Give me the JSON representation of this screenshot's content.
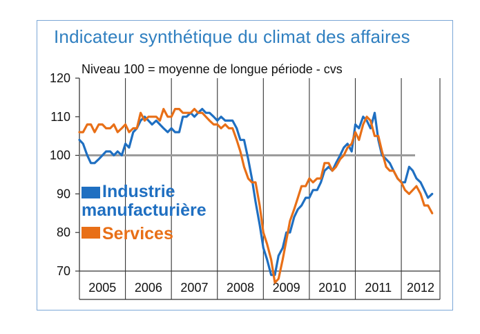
{
  "chart_data": {
    "type": "line",
    "title": "Indicateur synthétique du climat des affaires",
    "subtitle": "Niveau 100 = moyenne de longue période - cvs",
    "xlabel": "",
    "ylabel": "",
    "ylim": [
      70,
      120
    ],
    "yticks": [
      70,
      80,
      90,
      100,
      110,
      120
    ],
    "xlim": [
      2005.0,
      2012.84
    ],
    "years": [
      "2005",
      "2006",
      "2007",
      "2008",
      "2009",
      "2010",
      "2011",
      "2012"
    ],
    "reference_line": 100,
    "grid": false,
    "legend_position": "left-middle",
    "series": [
      {
        "name": "Industrie manufacturière",
        "color": "#1f6fc1",
        "values": [
          [
            2005.0,
            104
          ],
          [
            2005.08,
            103
          ],
          [
            2005.17,
            100
          ],
          [
            2005.25,
            98
          ],
          [
            2005.33,
            98
          ],
          [
            2005.42,
            99
          ],
          [
            2005.5,
            100
          ],
          [
            2005.58,
            101
          ],
          [
            2005.67,
            101
          ],
          [
            2005.75,
            100
          ],
          [
            2005.83,
            101
          ],
          [
            2005.92,
            100
          ],
          [
            2006.0,
            103
          ],
          [
            2006.08,
            102
          ],
          [
            2006.17,
            106
          ],
          [
            2006.25,
            107
          ],
          [
            2006.33,
            109
          ],
          [
            2006.42,
            110
          ],
          [
            2006.5,
            109
          ],
          [
            2006.58,
            108
          ],
          [
            2006.67,
            109
          ],
          [
            2006.75,
            108
          ],
          [
            2006.83,
            107
          ],
          [
            2006.92,
            106
          ],
          [
            2007.0,
            107
          ],
          [
            2007.08,
            106
          ],
          [
            2007.17,
            106
          ],
          [
            2007.25,
            110
          ],
          [
            2007.33,
            110
          ],
          [
            2007.42,
            111
          ],
          [
            2007.5,
            110
          ],
          [
            2007.58,
            111
          ],
          [
            2007.67,
            112
          ],
          [
            2007.75,
            111
          ],
          [
            2007.83,
            111
          ],
          [
            2007.92,
            110
          ],
          [
            2008.0,
            109
          ],
          [
            2008.08,
            110
          ],
          [
            2008.17,
            109
          ],
          [
            2008.25,
            109
          ],
          [
            2008.33,
            109
          ],
          [
            2008.42,
            107
          ],
          [
            2008.5,
            104
          ],
          [
            2008.58,
            104
          ],
          [
            2008.67,
            99
          ],
          [
            2008.75,
            94
          ],
          [
            2008.83,
            88
          ],
          [
            2008.92,
            82
          ],
          [
            2009.0,
            76
          ],
          [
            2009.08,
            73
          ],
          [
            2009.17,
            69
          ],
          [
            2009.25,
            69
          ],
          [
            2009.33,
            74
          ],
          [
            2009.42,
            76
          ],
          [
            2009.5,
            80
          ],
          [
            2009.58,
            80
          ],
          [
            2009.67,
            84
          ],
          [
            2009.75,
            86
          ],
          [
            2009.83,
            87
          ],
          [
            2009.92,
            89
          ],
          [
            2010.0,
            89
          ],
          [
            2010.08,
            91
          ],
          [
            2010.17,
            91
          ],
          [
            2010.25,
            93
          ],
          [
            2010.33,
            96
          ],
          [
            2010.42,
            97
          ],
          [
            2010.5,
            96
          ],
          [
            2010.58,
            98
          ],
          [
            2010.67,
            100
          ],
          [
            2010.75,
            102
          ],
          [
            2010.83,
            103
          ],
          [
            2010.92,
            101
          ],
          [
            2011.0,
            108
          ],
          [
            2011.08,
            107
          ],
          [
            2011.17,
            110
          ],
          [
            2011.25,
            109
          ],
          [
            2011.33,
            107
          ],
          [
            2011.42,
            111
          ],
          [
            2011.5,
            104
          ],
          [
            2011.58,
            100
          ],
          [
            2011.67,
            99
          ],
          [
            2011.75,
            98
          ],
          [
            2011.83,
            96
          ],
          [
            2011.92,
            94
          ],
          [
            2012.0,
            93
          ],
          [
            2012.08,
            93
          ],
          [
            2012.17,
            97
          ],
          [
            2012.25,
            96
          ],
          [
            2012.33,
            94
          ],
          [
            2012.42,
            93
          ],
          [
            2012.5,
            91
          ],
          [
            2012.58,
            89
          ],
          [
            2012.67,
            90
          ]
        ]
      },
      {
        "name": "Services",
        "color": "#e86f17",
        "values": [
          [
            2005.0,
            106
          ],
          [
            2005.08,
            106
          ],
          [
            2005.17,
            108
          ],
          [
            2005.25,
            108
          ],
          [
            2005.33,
            106
          ],
          [
            2005.42,
            108
          ],
          [
            2005.5,
            108
          ],
          [
            2005.58,
            107
          ],
          [
            2005.67,
            107
          ],
          [
            2005.75,
            108
          ],
          [
            2005.83,
            106
          ],
          [
            2005.92,
            107
          ],
          [
            2006.0,
            108
          ],
          [
            2006.08,
            106
          ],
          [
            2006.17,
            107
          ],
          [
            2006.25,
            107
          ],
          [
            2006.33,
            111
          ],
          [
            2006.42,
            109
          ],
          [
            2006.5,
            110
          ],
          [
            2006.58,
            110
          ],
          [
            2006.67,
            110
          ],
          [
            2006.75,
            109
          ],
          [
            2006.83,
            112
          ],
          [
            2006.92,
            110
          ],
          [
            2007.0,
            110
          ],
          [
            2007.08,
            112
          ],
          [
            2007.17,
            112
          ],
          [
            2007.25,
            111
          ],
          [
            2007.33,
            111
          ],
          [
            2007.42,
            111
          ],
          [
            2007.5,
            112
          ],
          [
            2007.58,
            111
          ],
          [
            2007.67,
            111
          ],
          [
            2007.75,
            110
          ],
          [
            2007.83,
            109
          ],
          [
            2007.92,
            108
          ],
          [
            2008.0,
            108
          ],
          [
            2008.08,
            107
          ],
          [
            2008.17,
            108
          ],
          [
            2008.25,
            107
          ],
          [
            2008.33,
            107
          ],
          [
            2008.42,
            104
          ],
          [
            2008.5,
            101
          ],
          [
            2008.58,
            97
          ],
          [
            2008.67,
            94
          ],
          [
            2008.75,
            93
          ],
          [
            2008.83,
            93
          ],
          [
            2008.92,
            87
          ],
          [
            2009.0,
            80
          ],
          [
            2009.08,
            77
          ],
          [
            2009.17,
            73
          ],
          [
            2009.25,
            67
          ],
          [
            2009.33,
            68
          ],
          [
            2009.42,
            73
          ],
          [
            2009.5,
            78
          ],
          [
            2009.58,
            83
          ],
          [
            2009.67,
            86
          ],
          [
            2009.75,
            89
          ],
          [
            2009.83,
            92
          ],
          [
            2009.92,
            92
          ],
          [
            2010.0,
            94
          ],
          [
            2010.08,
            93
          ],
          [
            2010.17,
            94
          ],
          [
            2010.25,
            94
          ],
          [
            2010.33,
            98
          ],
          [
            2010.42,
            98
          ],
          [
            2010.5,
            96
          ],
          [
            2010.58,
            97
          ],
          [
            2010.67,
            99
          ],
          [
            2010.75,
            100
          ],
          [
            2010.83,
            102
          ],
          [
            2010.92,
            103
          ],
          [
            2011.0,
            106
          ],
          [
            2011.08,
            104
          ],
          [
            2011.17,
            108
          ],
          [
            2011.25,
            110
          ],
          [
            2011.33,
            109
          ],
          [
            2011.42,
            105
          ],
          [
            2011.5,
            105
          ],
          [
            2011.58,
            101
          ],
          [
            2011.67,
            97
          ],
          [
            2011.75,
            96
          ],
          [
            2011.83,
            96
          ],
          [
            2011.92,
            94
          ],
          [
            2012.0,
            93
          ],
          [
            2012.08,
            91
          ],
          [
            2012.17,
            90
          ],
          [
            2012.25,
            91
          ],
          [
            2012.33,
            92
          ],
          [
            2012.42,
            90
          ],
          [
            2012.5,
            87
          ],
          [
            2012.58,
            87
          ],
          [
            2012.67,
            85
          ]
        ]
      }
    ]
  }
}
